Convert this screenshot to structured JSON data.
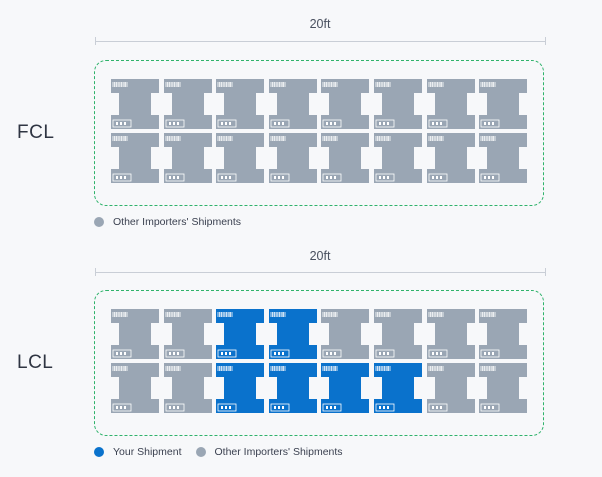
{
  "colors": {
    "your_shipment": "#0a72cc",
    "other_shipment": "#9aa6b4",
    "container_border": "#2fb36b"
  },
  "icons": {
    "box": "cargo-box-icon"
  },
  "fcl": {
    "label": "FCL",
    "dimension": "20ft",
    "grid": {
      "rows": 2,
      "cols": 8,
      "cells": [
        [
          "other",
          "other",
          "other",
          "other",
          "other",
          "other",
          "other",
          "other"
        ],
        [
          "other",
          "other",
          "other",
          "other",
          "other",
          "other",
          "other",
          "other"
        ]
      ]
    },
    "legend": [
      {
        "type": "other",
        "label": "Other Importers' Shipments"
      }
    ]
  },
  "lcl": {
    "label": "LCL",
    "dimension": "20ft",
    "grid": {
      "rows": 2,
      "cols": 8,
      "cells": [
        [
          "other",
          "other",
          "yours",
          "yours",
          "other",
          "other",
          "other",
          "other"
        ],
        [
          "other",
          "other",
          "yours",
          "yours",
          "yours",
          "yours",
          "other",
          "other"
        ]
      ]
    },
    "legend": [
      {
        "type": "yours",
        "label": "Your Shipment"
      },
      {
        "type": "other",
        "label": "Other Importers' Shipments"
      }
    ]
  }
}
